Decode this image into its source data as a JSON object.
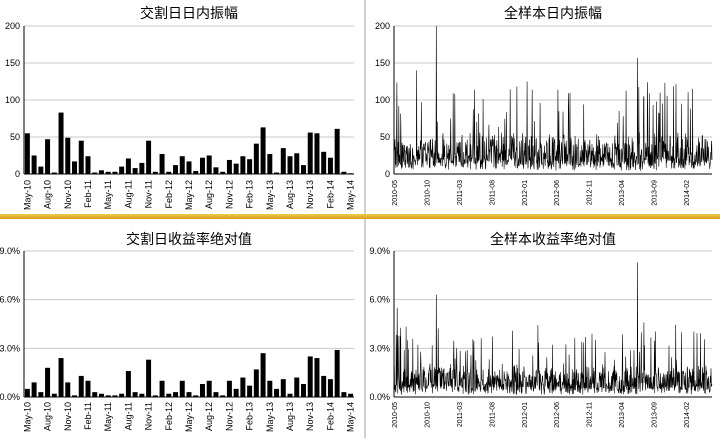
{
  "colors": {
    "bar": "#000000",
    "grid": "#c8c8c8",
    "line": "#000000",
    "divider": "#e3b330"
  },
  "chart_data": [
    {
      "type": "bar",
      "title": "交割日日内振幅",
      "ylim": [
        0,
        200
      ],
      "yticks": [
        "0",
        "50",
        "100",
        "150",
        "200"
      ],
      "grid": true,
      "categories": [
        "May-10",
        "Jun-10",
        "Jul-10",
        "Aug-10",
        "Sep-10",
        "Oct-10",
        "Nov-10",
        "Dec-10",
        "Jan-11",
        "Feb-11",
        "Mar-11",
        "Apr-11",
        "May-11",
        "Jun-11",
        "Jul-11",
        "Aug-11",
        "Sep-11",
        "Oct-11",
        "Nov-11",
        "Dec-11",
        "Jan-12",
        "Feb-12",
        "Mar-12",
        "Apr-12",
        "May-12",
        "Jun-12",
        "Jul-12",
        "Aug-12",
        "Sep-12",
        "Oct-12",
        "Nov-12",
        "Dec-12",
        "Jan-13",
        "Feb-13",
        "Mar-13",
        "Apr-13",
        "May-13",
        "Jun-13",
        "Jul-13",
        "Aug-13",
        "Sep-13",
        "Oct-13",
        "Nov-13",
        "Dec-13",
        "Jan-14",
        "Feb-14",
        "Mar-14",
        "Apr-14",
        "May-14"
      ],
      "xtick_labels": [
        "May-10",
        "Aug-10",
        "Nov-10",
        "Feb-11",
        "May-11",
        "Aug-11",
        "Nov-11",
        "Feb-12",
        "May-12",
        "Aug-12",
        "Nov-12",
        "Feb-13",
        "May-13",
        "Aug-13",
        "Nov-13",
        "Feb-14",
        "May-14"
      ],
      "values": [
        55,
        25,
        10,
        47,
        2,
        83,
        49,
        17,
        45,
        24,
        2,
        5,
        3,
        3,
        10,
        21,
        8,
        15,
        45,
        3,
        27,
        3,
        12,
        24,
        17,
        4,
        22,
        25,
        9,
        3,
        19,
        14,
        24,
        20,
        41,
        63,
        27,
        2,
        35,
        24,
        28,
        12,
        56,
        55,
        30,
        22,
        61,
        3,
        1
      ]
    },
    {
      "type": "line",
      "title": "全样本日内振幅",
      "ylim": [
        0,
        200
      ],
      "yticks": [
        "0",
        "50",
        "100",
        "150",
        "200"
      ],
      "grid": true,
      "x_start": "2010-05",
      "x_end": "2014-06",
      "xtick_labels": [
        "2010-05",
        "2010-10",
        "2011-03",
        "2011-08",
        "2012-01",
        "2012-06",
        "2012-11",
        "2013-04",
        "2013-09",
        "2014-02"
      ],
      "series_stats": {
        "baseline_mean": 25,
        "peaks": [
          [
            "2010-11",
            200
          ],
          [
            "2010-08",
            140
          ],
          [
            "2012-01",
            125
          ],
          [
            "2013-06",
            157
          ],
          [
            "2013-07",
            105
          ]
        ]
      }
    },
    {
      "type": "bar",
      "title": "交割日收益率绝对值",
      "ylim": [
        0,
        9.0
      ],
      "yticks": [
        "0.0%",
        "3.0%",
        "6.0%",
        "9.0%"
      ],
      "grid": true,
      "categories": [
        "May-10",
        "Jun-10",
        "Jul-10",
        "Aug-10",
        "Sep-10",
        "Oct-10",
        "Nov-10",
        "Dec-10",
        "Jan-11",
        "Feb-11",
        "Mar-11",
        "Apr-11",
        "May-11",
        "Jun-11",
        "Jul-11",
        "Aug-11",
        "Sep-11",
        "Oct-11",
        "Nov-11",
        "Dec-11",
        "Jan-12",
        "Feb-12",
        "Mar-12",
        "Apr-12",
        "May-12",
        "Jun-12",
        "Jul-12",
        "Aug-12",
        "Sep-12",
        "Oct-12",
        "Nov-12",
        "Dec-12",
        "Jan-13",
        "Feb-13",
        "Mar-13",
        "Apr-13",
        "May-13",
        "Jun-13",
        "Jul-13",
        "Aug-13",
        "Sep-13",
        "Oct-13",
        "Nov-13",
        "Dec-13",
        "Jan-14",
        "Feb-14",
        "Mar-14",
        "Apr-14",
        "May-14"
      ],
      "xtick_labels": [
        "May-10",
        "Aug-10",
        "Nov-10",
        "Feb-11",
        "May-11",
        "Aug-11",
        "Nov-11",
        "Feb-12",
        "May-12",
        "Aug-12",
        "Nov-12",
        "Feb-13",
        "May-13",
        "Aug-13",
        "Nov-13",
        "Feb-14",
        "May-14"
      ],
      "values": [
        0.5,
        0.9,
        0.3,
        1.8,
        0.2,
        2.4,
        0.9,
        0.1,
        1.3,
        1.0,
        0.3,
        0.2,
        0.1,
        0.1,
        0.2,
        1.6,
        0.3,
        0.2,
        2.3,
        0.1,
        1.0,
        0.2,
        0.3,
        1.0,
        0.3,
        0.1,
        0.8,
        1.0,
        0.3,
        0.1,
        1.0,
        0.5,
        1.2,
        0.7,
        1.7,
        2.7,
        1.0,
        0.5,
        1.1,
        0.2,
        1.2,
        0.8,
        2.5,
        2.4,
        1.3,
        1.1,
        2.9,
        0.3,
        0.2
      ]
    },
    {
      "type": "line",
      "title": "全样本收益率绝对值",
      "ylim": [
        0,
        9.0
      ],
      "yticks": [
        "0.0%",
        "3.0%",
        "6.0%",
        "9.0%"
      ],
      "grid": true,
      "x_start": "2010-05",
      "x_end": "2014-06",
      "xtick_labels": [
        "2010-05",
        "2010-10",
        "2011-03",
        "2011-08",
        "2012-01",
        "2012-06",
        "2012-11",
        "2013-04",
        "2013-09",
        "2014-02"
      ],
      "series_stats": {
        "baseline_mean": 0.9,
        "peaks": [
          [
            "2013-06",
            8.3
          ],
          [
            "2010-05",
            5.5
          ],
          [
            "2010-11",
            6.3
          ],
          [
            "2012-11",
            3.9
          ],
          [
            "2013-07",
            4.6
          ]
        ]
      }
    }
  ]
}
